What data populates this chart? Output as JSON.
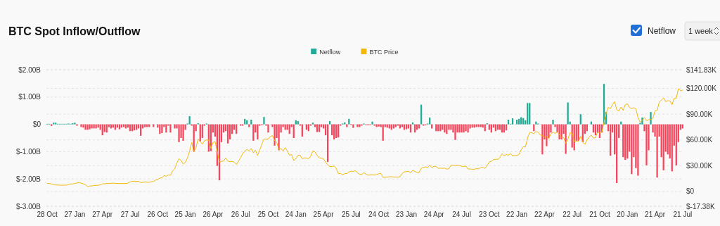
{
  "chart_data": {
    "type": "bar",
    "title": "BTC Spot Inflow/Outflow",
    "annotations": [
      "Netflow",
      "1 week"
    ],
    "categories": [
      "28 Oct",
      null,
      null,
      null,
      null,
      null,
      null,
      null,
      null,
      null,
      null,
      null,
      null,
      "27 Jan",
      null,
      null,
      null,
      null,
      null,
      null,
      null,
      null,
      null,
      null,
      null,
      null,
      "27 Apr",
      null,
      null,
      null,
      null,
      null,
      null,
      null,
      null,
      null,
      null,
      null,
      null,
      "27 Jul",
      null,
      null,
      null,
      null,
      null,
      null,
      null,
      null,
      null,
      null,
      null,
      null,
      "26 Oct",
      null,
      null,
      null,
      null,
      null,
      null,
      null,
      null,
      null,
      null,
      null,
      null,
      "25 Jan",
      null,
      null,
      null,
      null,
      null,
      null,
      null,
      null,
      null,
      null,
      null,
      null,
      "26 Apr",
      null,
      null,
      null,
      null,
      null,
      null,
      null,
      null,
      null,
      null,
      null,
      null,
      "26 Jul",
      null,
      null,
      null,
      null,
      null,
      null,
      null,
      null,
      null,
      null,
      null,
      null,
      "25 Oct",
      null,
      null,
      null,
      null,
      null,
      null,
      null,
      null,
      null,
      null,
      null,
      null,
      "24 Jan",
      null,
      null,
      null,
      null,
      null,
      null,
      null,
      null,
      null,
      null,
      null,
      null,
      "25 Apr",
      null,
      null,
      null,
      null,
      null,
      null,
      null,
      null,
      null,
      null,
      null,
      null,
      "25 Jul",
      null,
      null,
      null,
      null,
      null,
      null,
      null,
      null,
      null,
      null,
      null,
      null,
      "24 Oct",
      null,
      null,
      null,
      null,
      null,
      null,
      null,
      null,
      null,
      null,
      null,
      null,
      "23 Jan",
      null,
      null,
      null,
      null,
      null,
      null,
      null,
      null,
      null,
      null,
      null,
      null,
      "24 Apr",
      null,
      null,
      null,
      null,
      null,
      null,
      null,
      null,
      null,
      null,
      null,
      null,
      "24 Jul",
      null,
      null,
      null,
      null,
      null,
      null,
      null,
      null,
      null,
      null,
      null,
      null,
      "23 Oct",
      null,
      null,
      null,
      null,
      null,
      null,
      null,
      null,
      null,
      null,
      null,
      null,
      "22 Jan",
      null,
      null,
      null,
      null,
      null,
      null,
      null,
      null,
      null,
      null,
      null,
      null,
      "22 Apr",
      null,
      null,
      null,
      null,
      null,
      null,
      null,
      null,
      null,
      null,
      null,
      null,
      "22 Jul",
      null,
      null,
      null,
      null,
      null,
      null,
      null,
      null,
      null,
      null,
      null,
      null,
      "21 Oct",
      null,
      null,
      null,
      null,
      null,
      null,
      null,
      null,
      null,
      null,
      null,
      null,
      "20 Jan",
      null,
      null,
      null,
      null,
      null,
      null,
      null,
      null,
      null,
      null,
      null,
      null,
      "21 Apr",
      null,
      null,
      null,
      null,
      null,
      null,
      null,
      null,
      null,
      null,
      null,
      null,
      "21 Jul"
    ],
    "series": [
      {
        "name": "Netflow",
        "color": "#22ab94",
        "colors": [
          "#22ab94",
          "#22ab94",
          "#f6465d",
          "#22ab94",
          "#22ab94",
          "#22ab94",
          "#22ab94",
          "#22ab94",
          "#22ab94",
          "#22ab94",
          "#22ab94",
          "#22ab94",
          "#22ab94",
          "#22ab94",
          "#f6465d",
          "#22ab94",
          "#f6465d",
          "#f6465d",
          "#f6465d",
          "#f6465d",
          "#f6465d",
          "#f6465d",
          "#f6465d",
          "#f6465d",
          "#f6465d",
          "#f6465d",
          "#f6465d",
          "#f6465d",
          "#f6465d",
          "#f6465d",
          "#f6465d",
          "#f6465d",
          "#f6465d",
          "#f6465d",
          "#f6465d",
          "#f6465d",
          "#f6465d",
          "#f6465d",
          "#f6465d",
          "#f6465d",
          "#f6465d",
          "#f6465d",
          "#f6465d",
          "#f6465d",
          "#f6465d",
          "#f6465d",
          "#f6465d",
          "#f6465d",
          "#f6465d",
          "#22ab94",
          "#f6465d",
          "#22ab94",
          "#f6465d",
          "#f6465d",
          "#f6465d",
          "#f6465d",
          "#f6465d",
          "#f6465d",
          "#f6465d",
          "#22ab94",
          "#f6465d",
          "#f6465d",
          "#f6465d",
          "#f6465d",
          "#f6465d",
          "#f6465d",
          "#22ab94",
          "#22ab94",
          "#f6465d",
          "#f6465d",
          "#f6465d",
          "#22ab94",
          "#f6465d",
          "#f6465d",
          "#f6465d",
          "#22ab94",
          "#f6465d",
          "#f6465d",
          "#f6465d",
          "#f6465d",
          "#f6465d",
          "#f6465d",
          "#f6465d",
          "#f6465d",
          "#f6465d",
          "#f6465d",
          "#f6465d",
          "#f6465d",
          "#f6465d",
          "#f6465d",
          "#22ab94",
          "#f6465d",
          "#f6465d",
          "#22ab94",
          "#22ab94",
          "#f6465d",
          "#22ab94",
          "#f6465d",
          "#f6465d",
          "#f6465d",
          "#f6465d",
          "#f6465d",
          "#22ab94",
          "#f6465d",
          "#f6465d",
          "#22ab94",
          "#f6465d",
          "#f6465d",
          "#f6465d",
          "#f6465d",
          "#f6465d",
          "#f6465d",
          "#f6465d",
          "#f6465d",
          "#f6465d",
          "#f6465d",
          "#f6465d",
          "#22ab94",
          "#22ab94",
          "#f6465d",
          "#f6465d",
          "#22ab94",
          "#f6465d",
          "#f6465d",
          "#f6465d",
          "#22ab94",
          "#f6465d",
          "#f6465d",
          "#f6465d",
          "#f6465d",
          "#f6465d",
          "#f6465d",
          "#f6465d",
          "#22ab94",
          "#f6465d",
          "#f6465d",
          "#f6465d",
          "#f6465d",
          "#f6465d",
          "#22ab94",
          "#22ab94",
          "#f6465d",
          "#22ab94",
          "#f6465d",
          "#f6465d",
          "#22ab94",
          "#f6465d",
          "#f6465d",
          "#f6465d",
          "#22ab94",
          "#f6465d",
          "#f6465d",
          "#f6465d",
          "#22ab94",
          "#f6465d",
          "#f6465d",
          "#f6465d",
          "#f6465d",
          "#f6465d",
          "#f6465d",
          "#f6465d",
          "#f6465d",
          "#f6465d",
          "#f6465d",
          "#f6465d",
          "#f6465d",
          "#f6465d",
          "#f6465d",
          "#f6465d",
          "#f6465d",
          "#f6465d",
          "#f6465d",
          "#22ab94",
          "#f6465d",
          "#f6465d",
          "#f6465d",
          "#22ab94",
          "#f6465d",
          "#f6465d",
          "#22ab94",
          "#22ab94",
          "#f6465d",
          "#22ab94",
          "#f6465d",
          "#f6465d",
          "#f6465d",
          "#f6465d",
          "#f6465d",
          "#f6465d",
          "#f6465d",
          "#f6465d",
          "#f6465d",
          "#f6465d",
          "#f6465d",
          "#f6465d",
          "#f6465d",
          "#f6465d",
          "#f6465d",
          "#f6465d",
          "#f6465d",
          "#f6465d",
          "#f6465d",
          "#f6465d",
          "#f6465d",
          "#f6465d",
          "#f6465d",
          "#f6465d",
          "#22ab94",
          "#f6465d",
          "#f6465d",
          "#f6465d",
          "#f6465d",
          "#f6465d",
          "#f6465d",
          "#f6465d",
          "#f6465d",
          "#f6465d",
          "#22ab94",
          "#22ab94",
          "#22ab94",
          "#22ab94",
          "#22ab94",
          "#22ab94",
          "#22ab94",
          "#22ab94",
          "#22ab94",
          "#22ab94",
          "#22ab94",
          "#22ab94",
          "#f6465d",
          "#22ab94",
          "#22ab94",
          "#22ab94",
          "#f6465d",
          "#f6465d",
          "#f6465d",
          "#f6465d",
          "#f6465d",
          "#22ab94",
          "#f6465d",
          "#f6465d",
          "#f6465d",
          "#f6465d",
          "#f6465d",
          "#f6465d",
          "#22ab94",
          "#22ab94",
          "#f6465d",
          "#f6465d",
          "#f6465d",
          "#f6465d",
          "#22ab94",
          "#f6465d",
          "#f6465d",
          "#f6465d",
          "#22ab94",
          "#22ab94",
          "#f6465d",
          "#f6465d",
          "#f6465d",
          "#f6465d",
          "#f6465d",
          "#22ab94",
          "#22ab94",
          "#f6465d",
          "#f6465d",
          "#f6465d",
          "#f6465d",
          "#f6465d",
          "#f6465d",
          "#22ab94",
          "#f6465d",
          "#f6465d",
          "#f6465d",
          "#f6465d",
          "#f6465d",
          "#f6465d",
          "#f6465d",
          "#f6465d",
          "#22ab94",
          "#22ab94",
          "#f6465d",
          "#f6465d",
          "#f6465d",
          "#22ab94",
          "#f6465d",
          "#f6465d",
          "#f6465d",
          "#f6465d",
          "#f6465d",
          "#f6465d",
          "#f6465d",
          "#f6465d",
          "#f6465d",
          "#f6465d",
          "#f6465d",
          "#f6465d",
          "#f6465d",
          "#f6465d",
          "#f6465d"
        ],
        "values": [
          0.02,
          0.02,
          -0.06,
          0.06,
          0.06,
          0.02,
          0.02,
          0.02,
          0.02,
          0.02,
          0.03,
          0.02,
          0.04,
          0.06,
          -0.05,
          0,
          -0.1,
          -0.12,
          -0.2,
          -0.2,
          -0.18,
          -0.15,
          -0.15,
          -0.15,
          -0.12,
          -0.2,
          -0.4,
          -0.28,
          -0.3,
          -0.1,
          -0.15,
          -0.12,
          -0.2,
          -0.12,
          -0.18,
          -0.12,
          -0.1,
          -0.15,
          -0.12,
          -0.25,
          -0.25,
          -0.22,
          -0.2,
          -0.15,
          -0.42,
          -0.15,
          -0.1,
          -0.1,
          -0.1,
          0,
          -0.1,
          0,
          -0.12,
          -0.35,
          -0.32,
          -0.1,
          -0.3,
          -0.05,
          -0.3,
          0,
          -0.15,
          -0.15,
          -0.65,
          -0.5,
          -0.6,
          -0.2,
          0.03,
          0.3,
          -0.05,
          -1.0,
          -0.25,
          0.04,
          -0.62,
          -0.5,
          -0.05,
          0.03,
          -1.0,
          -0.98,
          -0.3,
          -0.45,
          -1.52,
          -2.05,
          -0.65,
          -0.3,
          -0.25,
          -0.7,
          -0.55,
          -0.35,
          -0.2,
          -0.35,
          0,
          -0.05,
          -0.05,
          0.2,
          0.15,
          -0.1,
          0.17,
          -0.6,
          -0.3,
          -0.55,
          -0.05,
          -0.03,
          0.27,
          -0.05,
          -0.3,
          0,
          -0.1,
          -0.78,
          -0.5,
          -0.95,
          -0.3,
          -0.1,
          -0.2,
          -0.2,
          -0.35,
          -0.1,
          -0.5,
          0.15,
          0.12,
          -0.05,
          -0.45,
          0,
          -0.2,
          -0.25,
          -0.05,
          0.06,
          -0.1,
          -0.28,
          -0.28,
          -0.1,
          -0.15,
          -0.4,
          -1.38,
          0.12,
          -0.4,
          -0.55,
          -0.5,
          -0.48,
          -0.05,
          0.03,
          0.07,
          -0.1,
          0.2,
          -0.03,
          -0.13,
          0,
          -0.1,
          -0.1,
          -0.05,
          0.03,
          -0.03,
          -0.03,
          -0.03,
          0.1,
          -0.05,
          -0.1,
          -0.08,
          -0.1,
          -0.6,
          -0.1,
          -0.12,
          -0.15,
          -0.2,
          -0.15,
          -0.1,
          -0.05,
          -0.15,
          -0.1,
          -0.2,
          -0.18,
          -0.15,
          -0.3,
          0.07,
          -0.3,
          -0.2,
          -0.15,
          0.72,
          -0.05,
          -0.03,
          0.03,
          0.25,
          -0.15,
          0,
          -0.25,
          -0.25,
          -0.25,
          -0.2,
          -0.3,
          -0.35,
          -0.2,
          -0.2,
          -0.3,
          -0.57,
          -0.3,
          -0.3,
          -0.3,
          -0.3,
          -0.25,
          -0.3,
          -0.15,
          -0.12,
          -0.12,
          -0.1,
          -0.1,
          -0.1,
          -0.12,
          -0.25,
          0.04,
          -0.2,
          -0.3,
          -0.12,
          -0.25,
          -0.2,
          -0.2,
          -0.3,
          -0.3,
          -0.22,
          0.17,
          0.02,
          0.22,
          0,
          0.17,
          0.2,
          0.26,
          0.23,
          0.15,
          0.78,
          0.78,
          0,
          -0.25,
          0.1,
          0.03,
          0,
          -1.1,
          -0.55,
          -0.8,
          -0.5,
          -0.3,
          0.17,
          -0.1,
          -0.3,
          -0.55,
          -0.55,
          -0.35,
          -1.08,
          0.8,
          0.1,
          -0.85,
          -0.95,
          -0.6,
          -0.6,
          0.37,
          -0.65,
          -0.35,
          -0.25,
          0,
          0.1,
          -0.3,
          -0.4,
          -0.3,
          -0.5,
          -0.3,
          1.48,
          0.45,
          -0.25,
          -1.15,
          -0.3,
          -1.1,
          -2.15,
          -0.5,
          0.1,
          -1.2,
          -1.3,
          -1.25,
          -1.0,
          -1.82,
          -1.2,
          -1.6,
          -1.88,
          0.05,
          0.25,
          -0.25,
          -1.5,
          -0.95,
          0.45,
          -0.3,
          -0.45,
          -1.95,
          -0.45,
          -1.2,
          -1.68,
          -1.0,
          -1.1,
          -1.25,
          -1.72,
          -0.78,
          -1.5,
          -0.65,
          -0.2,
          -0.15
        ]
      },
      {
        "name": "BTC Price",
        "type": "line",
        "axis": "y2",
        "color": "#f0b90b",
        "values": [
          9.2,
          9.3,
          8.6,
          8.1,
          7.4,
          7.5,
          7.2,
          7.1,
          7.3,
          7.2,
          8.0,
          8.7,
          8.6,
          9.3,
          9.8,
          10.2,
          9.7,
          8.8,
          8.0,
          5.4,
          6.4,
          6.3,
          6.8,
          7.0,
          7.1,
          7.6,
          8.9,
          8.7,
          9.4,
          9.2,
          9.4,
          9.6,
          9.4,
          9.3,
          9.1,
          9.1,
          9.2,
          9.2,
          9.6,
          11.1,
          11.7,
          11.9,
          11.6,
          11.7,
          10.3,
          10.4,
          11.0,
          10.7,
          10.6,
          11.3,
          11.5,
          13.1,
          13.8,
          15.5,
          16.0,
          18.4,
          17.7,
          19.2,
          18.8,
          23.8,
          26.3,
          33.0,
          38,
          36,
          32,
          34,
          39,
          47,
          57,
          46,
          51,
          61,
          58,
          55,
          59,
          60,
          60,
          50,
          57,
          58,
          47,
          34,
          35,
          35.5,
          39,
          35.5,
          34.5,
          35,
          34,
          31.5,
          35,
          39.5,
          44,
          47,
          49,
          47,
          50,
          45,
          48,
          42,
          48,
          55,
          61,
          61,
          61,
          64,
          65,
          59,
          57,
          49,
          50,
          47,
          51,
          47,
          42,
          43,
          36,
          38,
          42,
          42,
          38,
          39,
          39,
          38,
          41,
          47,
          46,
          42,
          39,
          39,
          38,
          34,
          31,
          29,
          29,
          29.5,
          27,
          20.5,
          21,
          19.3,
          20.8,
          20.8,
          22.5,
          23.6,
          23.2,
          24.3,
          21.5,
          20,
          19.8,
          21.8,
          20,
          18.9,
          19.4,
          19.4,
          19.2,
          19.6,
          20.6,
          21,
          16.3,
          16.5,
          16.5,
          17.1,
          17.1,
          16.7,
          16.8,
          16.6,
          17.1,
          20.9,
          22.7,
          23,
          23.3,
          21.8,
          24.6,
          23.2,
          22,
          22,
          26.9,
          27.9,
          28.5,
          28,
          30.3,
          27.8,
          29.2,
          28.8,
          26.8,
          27.1,
          26.8,
          27.2,
          25.9,
          26.3,
          30.5,
          30.6,
          30.2,
          30.3,
          30,
          29.3,
          29,
          29.4,
          26.1,
          26.1,
          25.8,
          25.8,
          26.5,
          26.2,
          27.9,
          27.9,
          26.8,
          29.9,
          34.1,
          35,
          37,
          37.4,
          37.4,
          39.5,
          44,
          41.4,
          43,
          42.2,
          43.9,
          41.7,
          41.6,
          42,
          43,
          48.3,
          52,
          51.7,
          62,
          68.5,
          68.4,
          67.2,
          69.6,
          69,
          65.7,
          64.9,
          63.1,
          63.9,
          61.5,
          67,
          69,
          67.5,
          69.6,
          66,
          63.2,
          62.7,
          55.9,
          60.8,
          68.2,
          68.3,
          58.2,
          58.7,
          58.4,
          64.2,
          57.3,
          54.8,
          60,
          63.3,
          65.6,
          62.1,
          62.8,
          69,
          68,
          69.4,
          80.4,
          90.6,
          98,
          96.4,
          101.2,
          104.5,
          95.2,
          93.7,
          98.3,
          94.5,
          101,
          102,
          97.7,
          96.5,
          97.5,
          96.3,
          86,
          80.7,
          82.6,
          86.1,
          82.3,
          83.5,
          83.7,
          85.2,
          93.7,
          94.3,
          104,
          106.5,
          109,
          104.6,
          105.6,
          105.5,
          101,
          108.4,
          108.2,
          119.8,
          117.3,
          118
        ]
      }
    ],
    "ylim": [
      -3,
      2
    ],
    "yticks": [
      {
        "value": -3,
        "label": "$-3.00B"
      },
      {
        "value": -2,
        "label": "$-2.00B"
      },
      {
        "value": -1,
        "label": "$-1.00B"
      },
      {
        "value": 0,
        "label": "$0"
      },
      {
        "value": 1,
        "label": "$1.00B"
      },
      {
        "value": 2,
        "label": "$2.00B"
      }
    ],
    "y2lim": [
      -17.38,
      141.83
    ],
    "y2ticks": [
      {
        "value": -17.38,
        "label": "$-17.38K"
      },
      {
        "value": 0,
        "label": "$0"
      },
      {
        "value": 30,
        "label": "$30.00K"
      },
      {
        "value": 60,
        "label": "$60.00K"
      },
      {
        "value": 90,
        "label": "$90.00K"
      },
      {
        "value": 120,
        "label": "$120.00K"
      },
      {
        "value": 141.83,
        "label": "$141.83K"
      }
    ],
    "grid": true,
    "legend": "top"
  }
}
